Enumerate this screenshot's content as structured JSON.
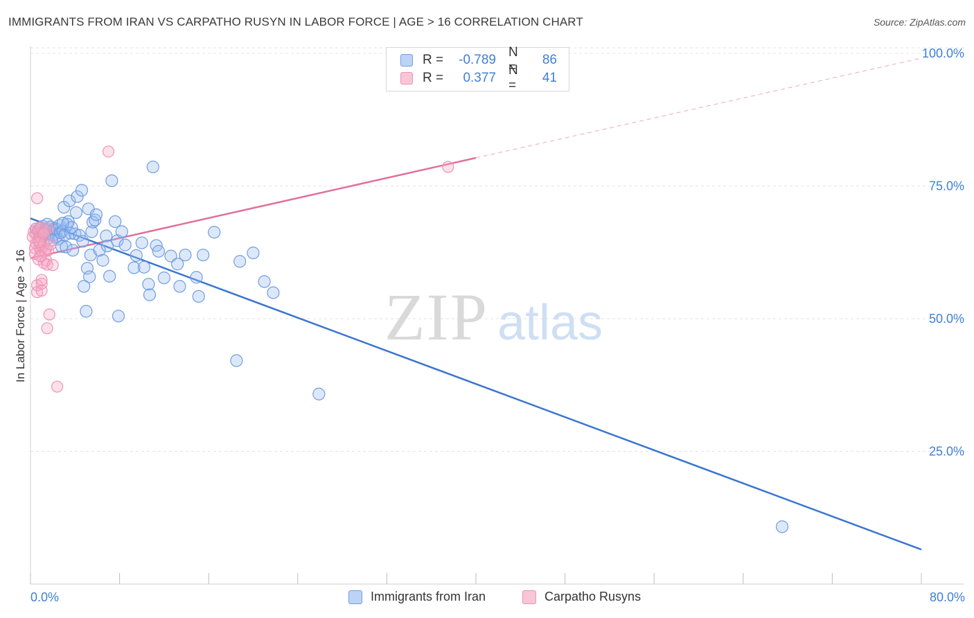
{
  "header": {
    "title": "IMMIGRANTS FROM IRAN VS CARPATHO RUSYN IN LABOR FORCE | AGE > 16 CORRELATION CHART",
    "source": "Source: ZipAtlas.com"
  },
  "watermark": {
    "zip": "ZIP",
    "atlas": "atlas"
  },
  "legend_stats": [
    {
      "r_label": "R =",
      "r_value": "-0.789",
      "n_label": "N =",
      "n_value": "86"
    },
    {
      "r_label": "R =",
      "r_value": "0.377",
      "n_label": "N =",
      "n_value": "41"
    }
  ],
  "colors": {
    "iran": "#3a75d0",
    "iran_fill": "rgba(155,190,240,0.35)",
    "iran_stroke": "#6f9de0",
    "rusyn": "#e0709a",
    "rusyn_fill": "rgba(245,170,195,0.35)",
    "rusyn_stroke": "#ec93b4",
    "axis_text": "#3f7fd6",
    "grid": "#e3e3e3"
  },
  "chart_data": {
    "type": "scatter",
    "title": "IMMIGRANTS FROM IRAN VS CARPATHO RUSYN IN LABOR FORCE | AGE > 16 CORRELATION CHART",
    "xlabel": "",
    "ylabel": "In Labor Force | Age > 16",
    "xlim": [
      0,
      80
    ],
    "ylim": [
      0,
      100
    ],
    "x_tick_labels": [
      "0.0%",
      "80.0%"
    ],
    "y_tick_labels": [
      "25.0%",
      "50.0%",
      "75.0%",
      "100.0%"
    ],
    "y_ticks": [
      25,
      50,
      75,
      100
    ],
    "grid": true,
    "legend_position": "bottom",
    "series": [
      {
        "name": "Immigrants from Iran",
        "r": -0.789,
        "n": 86,
        "trend": {
          "x_start": 0,
          "y_start": 68.9,
          "x_end": 80,
          "y_end": 6.5
        },
        "points": [
          [
            0.5,
            66.9
          ],
          [
            0.7,
            66.4
          ],
          [
            0.8,
            65.6
          ],
          [
            0.9,
            67.1
          ],
          [
            1.0,
            66.2
          ],
          [
            1.1,
            67.4
          ],
          [
            1.2,
            65.9
          ],
          [
            1.3,
            66.7
          ],
          [
            1.4,
            66.3
          ],
          [
            1.5,
            67.8
          ],
          [
            1.6,
            65.2
          ],
          [
            1.7,
            66.0
          ],
          [
            1.8,
            67.3
          ],
          [
            2.0,
            65.7
          ],
          [
            2.1,
            66.6
          ],
          [
            2.2,
            67.0
          ],
          [
            2.3,
            65.3
          ],
          [
            2.4,
            66.8
          ],
          [
            2.5,
            65.0
          ],
          [
            2.6,
            67.6
          ],
          [
            2.7,
            66.2
          ],
          [
            2.8,
            63.6
          ],
          [
            2.9,
            66.5
          ],
          [
            3.0,
            71.0
          ],
          [
            3.1,
            65.8
          ],
          [
            3.2,
            63.5
          ],
          [
            3.3,
            67.8
          ],
          [
            3.4,
            68.3
          ],
          [
            3.5,
            72.2
          ],
          [
            3.6,
            66.1
          ],
          [
            3.8,
            62.9
          ],
          [
            4.0,
            66.0
          ],
          [
            4.1,
            70.0
          ],
          [
            4.2,
            73.0
          ],
          [
            4.4,
            65.7
          ],
          [
            4.6,
            74.2
          ],
          [
            4.7,
            64.6
          ],
          [
            4.8,
            56.1
          ],
          [
            5.0,
            51.4
          ],
          [
            5.1,
            59.5
          ],
          [
            5.2,
            70.7
          ],
          [
            5.3,
            57.9
          ],
          [
            5.4,
            62.0
          ],
          [
            5.5,
            66.4
          ],
          [
            5.6,
            68.2
          ],
          [
            5.8,
            68.6
          ],
          [
            5.9,
            69.6
          ],
          [
            6.2,
            62.9
          ],
          [
            6.5,
            61.0
          ],
          [
            6.8,
            65.6
          ],
          [
            6.9,
            63.7
          ],
          [
            7.1,
            58.0
          ],
          [
            7.3,
            76.0
          ],
          [
            7.6,
            68.3
          ],
          [
            7.8,
            64.7
          ],
          [
            7.9,
            50.5
          ],
          [
            8.2,
            66.4
          ],
          [
            8.5,
            63.9
          ],
          [
            9.3,
            59.6
          ],
          [
            9.5,
            61.9
          ],
          [
            10.0,
            64.3
          ],
          [
            10.2,
            59.7
          ],
          [
            10.6,
            56.5
          ],
          [
            10.7,
            54.5
          ],
          [
            11.0,
            78.6
          ],
          [
            11.3,
            63.8
          ],
          [
            11.5,
            62.7
          ],
          [
            12.0,
            57.7
          ],
          [
            12.6,
            61.8
          ],
          [
            13.2,
            60.3
          ],
          [
            13.4,
            56.1
          ],
          [
            13.9,
            62.0
          ],
          [
            14.9,
            57.8
          ],
          [
            15.1,
            54.2
          ],
          [
            15.5,
            62.0
          ],
          [
            16.5,
            66.3
          ],
          [
            18.5,
            42.1
          ],
          [
            18.8,
            60.8
          ],
          [
            20.0,
            62.4
          ],
          [
            21.0,
            57.0
          ],
          [
            21.8,
            54.9
          ],
          [
            25.9,
            35.8
          ],
          [
            67.5,
            10.8
          ],
          [
            1.9,
            64.8
          ],
          [
            3.7,
            67.2
          ],
          [
            2.9,
            68.0
          ]
        ]
      },
      {
        "name": "Carpatho Rusyns",
        "r": 0.377,
        "n": 41,
        "trend": {
          "x_start": 0,
          "y_start": 61.4,
          "x_end": 40,
          "y_end": 80.3,
          "dash_x_end": 80,
          "dash_y_end": 99.1
        },
        "points": [
          [
            0.2,
            65.4
          ],
          [
            0.3,
            66.4
          ],
          [
            0.4,
            63.3
          ],
          [
            0.4,
            62.2
          ],
          [
            0.5,
            64.2
          ],
          [
            0.5,
            67.0
          ],
          [
            0.5,
            65.9
          ],
          [
            0.6,
            56.3
          ],
          [
            0.6,
            55.0
          ],
          [
            0.6,
            72.7
          ],
          [
            0.7,
            61.2
          ],
          [
            0.7,
            64.8
          ],
          [
            0.7,
            66.8
          ],
          [
            0.8,
            63.6
          ],
          [
            0.9,
            65.5
          ],
          [
            0.9,
            67.2
          ],
          [
            0.9,
            62.9
          ],
          [
            1.0,
            56.6
          ],
          [
            1.0,
            55.3
          ],
          [
            1.0,
            57.3
          ],
          [
            1.1,
            65.9
          ],
          [
            1.1,
            63.5
          ],
          [
            1.2,
            60.5
          ],
          [
            1.2,
            64.1
          ],
          [
            1.3,
            66.5
          ],
          [
            1.3,
            62.7
          ],
          [
            1.4,
            63.1
          ],
          [
            1.4,
            61.0
          ],
          [
            1.5,
            48.2
          ],
          [
            1.5,
            60.2
          ],
          [
            1.6,
            62.9
          ],
          [
            1.6,
            67.0
          ],
          [
            1.7,
            50.8
          ],
          [
            1.8,
            64.0
          ],
          [
            2.0,
            60.1
          ],
          [
            2.4,
            37.2
          ],
          [
            7.0,
            81.5
          ],
          [
            37.5,
            78.6
          ],
          [
            0.8,
            64.4
          ],
          [
            1.2,
            66.1
          ],
          [
            0.9,
            61.8
          ]
        ]
      }
    ]
  }
}
